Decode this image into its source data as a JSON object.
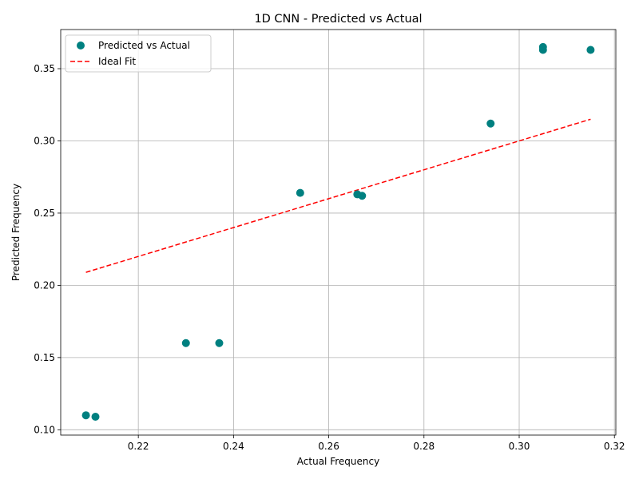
{
  "chart_data": {
    "type": "scatter",
    "title": "1D CNN - Predicted vs Actual",
    "xlabel": "Actual Frequency",
    "ylabel": "Predicted Frequency",
    "xlim": [
      0.2037,
      0.3203
    ],
    "ylim": [
      0.0963,
      0.3771
    ],
    "xticks": [
      0.22,
      0.24,
      0.26,
      0.28,
      0.3,
      0.32
    ],
    "xtick_labels": [
      "0.22",
      "0.24",
      "0.26",
      "0.28",
      "0.30",
      "0.32"
    ],
    "yticks": [
      0.1,
      0.15,
      0.2,
      0.25,
      0.3,
      0.35
    ],
    "ytick_labels": [
      "0.10",
      "0.15",
      "0.20",
      "0.25",
      "0.30",
      "0.35"
    ],
    "grid": true,
    "legend_position": "top-left",
    "series": [
      {
        "name": "Predicted vs Actual",
        "kind": "scatter",
        "color": "#008080",
        "points": [
          {
            "x": 0.209,
            "y": 0.11
          },
          {
            "x": 0.211,
            "y": 0.109
          },
          {
            "x": 0.23,
            "y": 0.16
          },
          {
            "x": 0.237,
            "y": 0.16
          },
          {
            "x": 0.254,
            "y": 0.264
          },
          {
            "x": 0.266,
            "y": 0.263
          },
          {
            "x": 0.267,
            "y": 0.262
          },
          {
            "x": 0.294,
            "y": 0.312
          },
          {
            "x": 0.305,
            "y": 0.365
          },
          {
            "x": 0.305,
            "y": 0.363
          },
          {
            "x": 0.315,
            "y": 0.363
          }
        ]
      },
      {
        "name": "Ideal Fit",
        "kind": "line",
        "style": "dashed",
        "color": "#ff0000",
        "points": [
          {
            "x": 0.209,
            "y": 0.209
          },
          {
            "x": 0.315,
            "y": 0.315
          }
        ]
      }
    ]
  }
}
